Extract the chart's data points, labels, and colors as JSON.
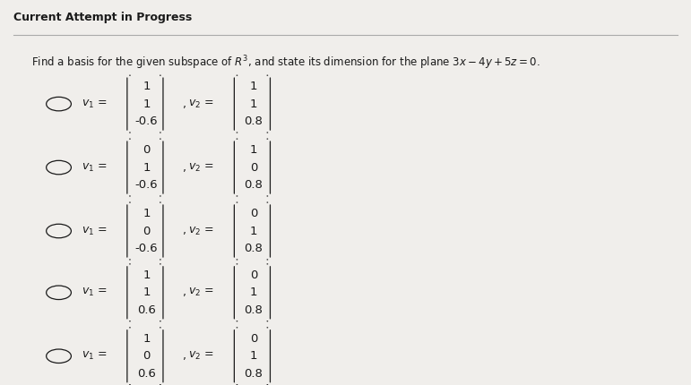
{
  "title": "Current Attempt in Progress",
  "question": "Find a basis for the given subspace of $R^3$, and state its dimension for the plane $3x - 4y + 5z = 0$.",
  "bg_color": "#f0eeeb",
  "options": [
    {
      "v1": [
        "1",
        "1",
        "-0.6"
      ],
      "v2": [
        "1",
        "1",
        "0.8"
      ]
    },
    {
      "v1": [
        "0",
        "1",
        "-0.6"
      ],
      "v2": [
        "1",
        "0",
        "0.8"
      ]
    },
    {
      "v1": [
        "1",
        "0",
        "-0.6"
      ],
      "v2": [
        "0",
        "1",
        "0.8"
      ]
    },
    {
      "v1": [
        "1",
        "1",
        "0.6"
      ],
      "v2": [
        "0",
        "1",
        "0.8"
      ]
    },
    {
      "v1": [
        "1",
        "0",
        "0.6"
      ],
      "v2": [
        "0",
        "1",
        "0.8"
      ]
    }
  ],
  "title_fontsize": 9,
  "question_fontsize": 8.5,
  "content_fontsize": 8.5,
  "text_color": "#1a1a1a"
}
